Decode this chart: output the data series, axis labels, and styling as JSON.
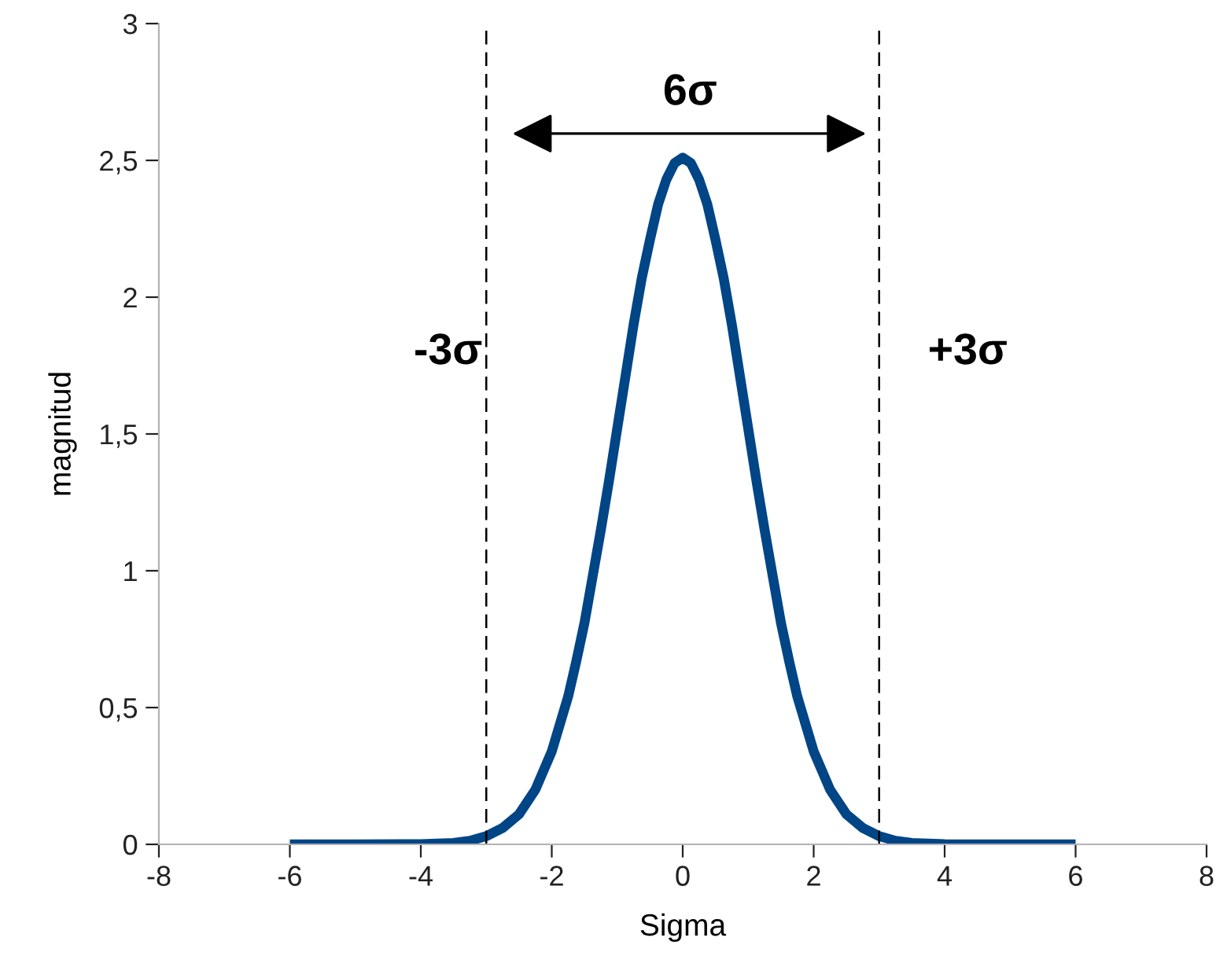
{
  "chart_data": {
    "type": "line",
    "xlabel": "Sigma",
    "ylabel": "magnitud",
    "xlim": [
      -8,
      8
    ],
    "xticks": [
      -8,
      -6,
      -4,
      -2,
      0,
      2,
      4,
      6,
      8
    ],
    "ylim": [
      0,
      3
    ],
    "yticks": [
      0,
      {
        "value": 0.5,
        "label": "0,5"
      },
      1,
      {
        "value": 1.5,
        "label": "1,5"
      },
      2,
      {
        "value": 2.5,
        "label": "2,5"
      },
      3
    ],
    "grid": false,
    "legend": false,
    "marker": "none",
    "line_style": "solid",
    "series": [
      {
        "color": "#004586",
        "x": [
          -6,
          -5,
          -4,
          -3.5,
          -3.25,
          -3,
          -2.75,
          -2.5,
          -2.25,
          -2,
          -1.75,
          -1.625,
          -1.5,
          -1.375,
          -1.25,
          -1.125,
          -1,
          -0.875,
          -0.75,
          -0.625,
          -0.5,
          -0.375,
          -0.25,
          -0.125,
          0,
          0.125,
          0.25,
          0.375,
          0.5,
          0.625,
          0.75,
          0.875,
          1,
          1.125,
          1.25,
          1.375,
          1.5,
          1.625,
          1.75,
          2,
          2.25,
          2.5,
          2.75,
          3,
          3.25,
          3.5,
          4,
          5,
          6
        ],
        "values": [
          0,
          0,
          0.001,
          0.005,
          0.013,
          0.03,
          0.06,
          0.11,
          0.2,
          0.34,
          0.54,
          0.67,
          0.81,
          0.98,
          1.15,
          1.33,
          1.52,
          1.71,
          1.9,
          2.07,
          2.21,
          2.34,
          2.43,
          2.49,
          2.51,
          2.49,
          2.43,
          2.34,
          2.21,
          2.07,
          1.9,
          1.71,
          1.52,
          1.33,
          1.15,
          0.98,
          0.81,
          0.67,
          0.54,
          0.34,
          0.2,
          0.11,
          0.06,
          0.03,
          0.013,
          0.005,
          0.001,
          0,
          0
        ]
      }
    ],
    "ref_lines": [
      {
        "axis": "x",
        "value": -3,
        "color": "#000000",
        "line_style": "dashed"
      },
      {
        "axis": "x",
        "value": 3,
        "color": "#000000",
        "line_style": "dashed"
      }
    ],
    "annotations": [
      "6σ",
      "-3σ",
      "+3σ"
    ]
  }
}
